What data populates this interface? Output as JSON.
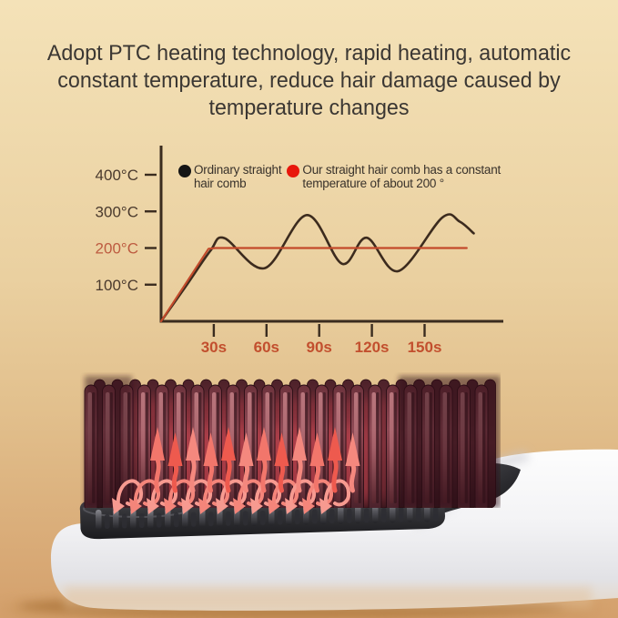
{
  "headline": {
    "lines": [
      "Adopt PTC heating technology, rapid heating, automatic",
      "constant temperature, reduce hair damage caused by",
      "temperature changes"
    ]
  },
  "chart_data": {
    "type": "line",
    "title": "",
    "xlabel": "",
    "ylabel": "",
    "x_unit": "s",
    "y_unit": "°C",
    "xlim": [
      0,
      190
    ],
    "ylim": [
      0,
      480
    ],
    "grid": false,
    "legend_position": "top-inside",
    "axis_color": "#3a2c1f",
    "yticks": [
      {
        "label": "400°C",
        "value": 400,
        "color": "#4a3a2d"
      },
      {
        "label": "300°C",
        "value": 300,
        "color": "#4a3a2d"
      },
      {
        "label": "200°C",
        "value": 200,
        "color": "#bd5b40"
      },
      {
        "label": "100°C",
        "value": 100,
        "color": "#4a3a2d"
      }
    ],
    "xticks": [
      {
        "label": "30s",
        "value": 30
      },
      {
        "label": "60s",
        "value": 60
      },
      {
        "label": "90s",
        "value": 90
      },
      {
        "label": "120s",
        "value": 120
      },
      {
        "label": "150s",
        "value": 150
      }
    ],
    "series": [
      {
        "name": "Ordinary straight hair comb",
        "color": "#3c2b1e",
        "width": 2.6,
        "smooth": true,
        "points": [
          [
            0,
            0
          ],
          [
            14,
            95
          ],
          [
            28,
            192
          ],
          [
            36,
            227
          ],
          [
            59,
            145
          ],
          [
            83,
            290
          ],
          [
            103,
            157
          ],
          [
            117,
            228
          ],
          [
            135,
            137
          ],
          [
            160,
            283
          ],
          [
            170,
            272
          ],
          [
            178,
            240
          ]
        ]
      },
      {
        "name": "Our straight hair comb has a constant temperature of about 200 °",
        "color": "#c24a2b",
        "width": 2.2,
        "smooth": false,
        "points": [
          [
            0,
            0
          ],
          [
            27,
            198
          ],
          [
            31,
            200
          ],
          [
            174,
            200
          ]
        ]
      }
    ],
    "legend": [
      {
        "dot_color": "#151515",
        "lines": [
          "Ordinary straight",
          "hair comb"
        ]
      },
      {
        "dot_color": "#e8170b",
        "lines": [
          "Our straight hair comb has a constant",
          "temperature of about 200 °"
        ]
      }
    ]
  },
  "colors": {
    "background_top": "#f4e2b8",
    "background_bottom": "#d4a06c",
    "headline_text": "#3b3733",
    "heat_arrow_red": "#ef5a4e",
    "bristle_maroon": "#7a3943",
    "plate_dark": "#2a2a2e",
    "comb_body_white": "#f4f4f6"
  }
}
